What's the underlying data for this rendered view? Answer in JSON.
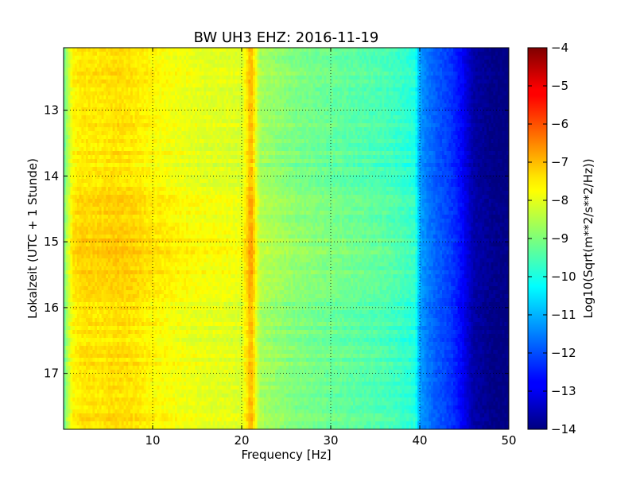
{
  "chart_data": {
    "type": "heatmap",
    "title": "BW UH3 EHZ: 2016-11-19",
    "xlabel": "Frequency [Hz]",
    "ylabel": "Lokalzeit (UTC + 1 Stunde)",
    "xlim": [
      0,
      50
    ],
    "ylim": [
      12.05,
      17.85
    ],
    "y_inverted": true,
    "x_ticks": [
      10,
      20,
      30,
      40,
      50
    ],
    "y_ticks": [
      13,
      14,
      15,
      16,
      17
    ],
    "grid": true,
    "colormap": "jet",
    "colorbar": {
      "label": "Log10(Sqrt(m**2/s**2/Hz))",
      "min": -14,
      "max": -4,
      "ticks": [
        -4,
        -5,
        -6,
        -7,
        -8,
        -9,
        -10,
        -11,
        -12,
        -13,
        -14
      ]
    },
    "frequency_profile": {
      "x": [
        0,
        0.4,
        1,
        2,
        4,
        6,
        8,
        10,
        12,
        14,
        16,
        18,
        20,
        20.6,
        21,
        21.4,
        22,
        24,
        26,
        28,
        30,
        32,
        34,
        36,
        38,
        39.5,
        40,
        41,
        42,
        43,
        44,
        45,
        46,
        48,
        50
      ],
      "values": [
        -9.3,
        -8.6,
        -7.7,
        -7.5,
        -7.5,
        -7.4,
        -7.5,
        -7.7,
        -7.8,
        -7.9,
        -8.0,
        -8.0,
        -8.1,
        -7.5,
        -6.9,
        -7.5,
        -8.6,
        -8.8,
        -9.0,
        -9.1,
        -9.2,
        -9.3,
        -9.4,
        -9.5,
        -9.7,
        -9.9,
        -11.2,
        -11.6,
        -11.9,
        -12.1,
        -12.4,
        -12.9,
        -13.6,
        -13.9,
        -14.0
      ]
    },
    "time_profile": {
      "y": [
        12.05,
        12.5,
        13.0,
        13.5,
        14.0,
        14.5,
        15.0,
        15.5,
        16.0,
        16.5,
        17.0,
        17.5,
        17.85
      ],
      "offset": [
        0.0,
        0.05,
        -0.05,
        0.0,
        -0.15,
        0.15,
        0.25,
        0.2,
        0.0,
        -0.05,
        0.05,
        0.0,
        0.1
      ]
    }
  }
}
